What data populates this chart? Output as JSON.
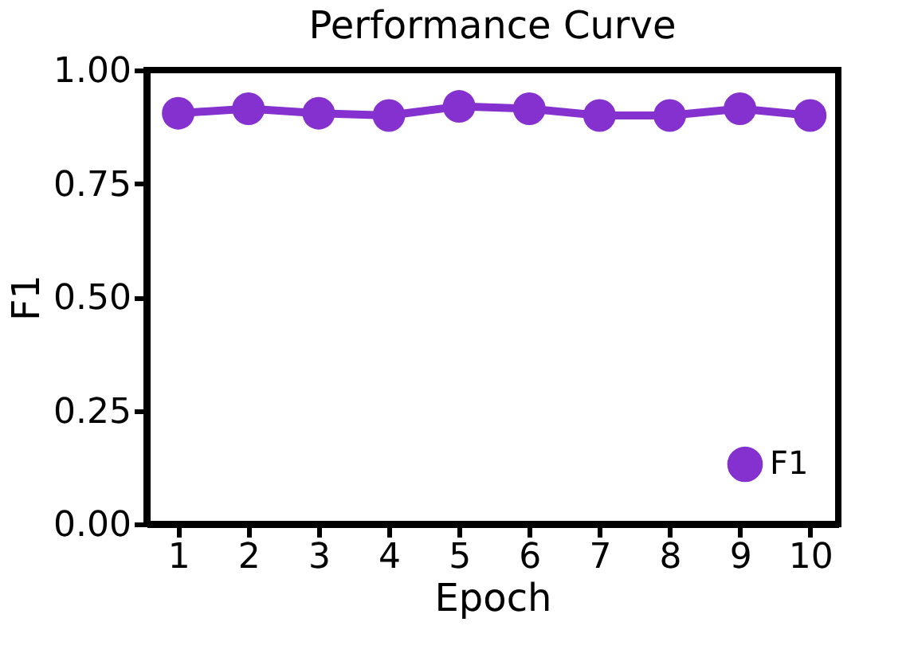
{
  "chart_data": {
    "type": "line",
    "title": "Performance Curve",
    "xlabel": "Epoch",
    "ylabel": "F1",
    "x": [
      1,
      2,
      3,
      4,
      5,
      6,
      7,
      8,
      9,
      10
    ],
    "series": [
      {
        "name": "F1",
        "color": "#8431cf",
        "values": [
          0.905,
          0.915,
          0.905,
          0.9,
          0.92,
          0.915,
          0.9,
          0.9,
          0.915,
          0.9
        ]
      }
    ],
    "xlim": [
      0.55,
      10.4
    ],
    "xticks": [
      1,
      2,
      3,
      4,
      5,
      6,
      7,
      8,
      9,
      10
    ],
    "ylim": [
      0,
      1
    ],
    "yticks": [
      {
        "value": 0,
        "label": "0.00"
      },
      {
        "value": 0.25,
        "label": "0.25"
      },
      {
        "value": 0.5,
        "label": "0.50"
      },
      {
        "value": 0.75,
        "label": "0.75"
      },
      {
        "value": 1,
        "label": "1.00"
      }
    ],
    "grid": false,
    "legend": "bottom right",
    "marker": "circle",
    "line_style": "solid"
  }
}
